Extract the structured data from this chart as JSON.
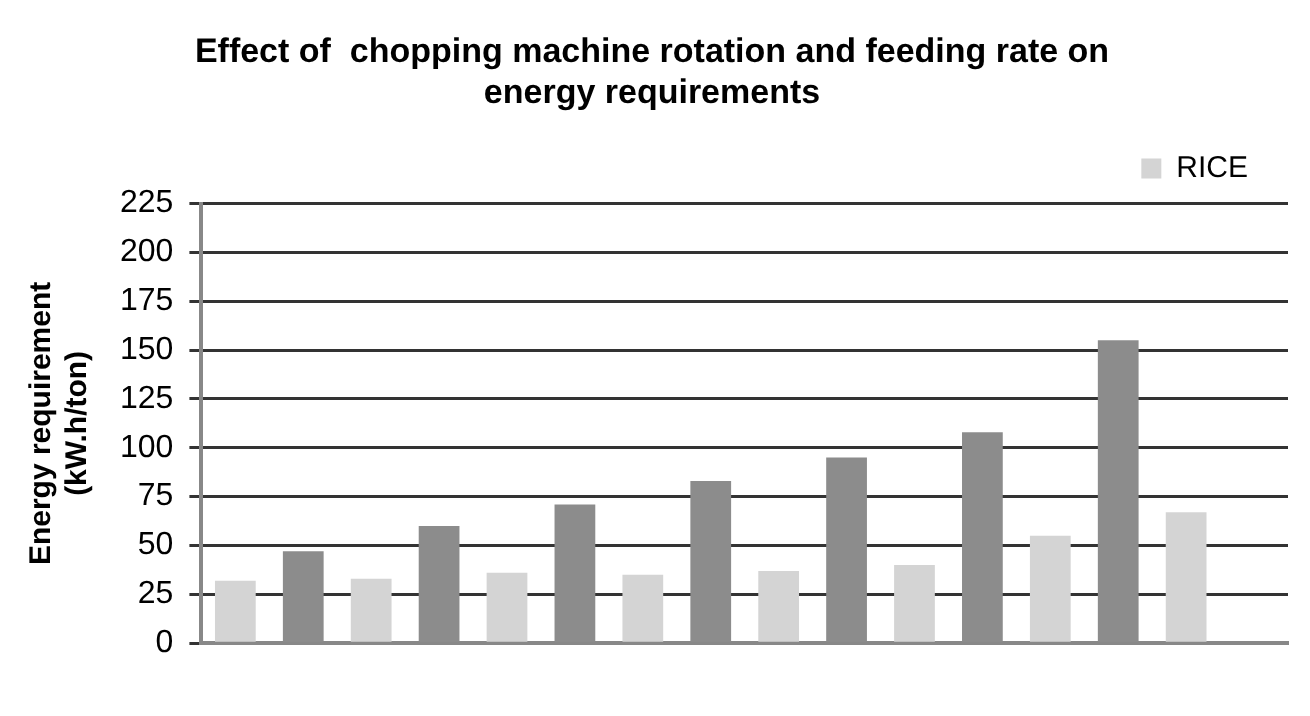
{
  "chart_data": {
    "type": "bar",
    "title": "Effect of  chopping machine rotation and feeding rate on\nenergy requirements",
    "ylabel": "Energy requirement\n(kW.h/ton)",
    "categories": [
      null,
      null,
      null,
      null,
      null,
      null,
      null,
      null
    ],
    "series": [
      {
        "name": "RICE",
        "color": "#d4d4d4",
        "values": [
          32,
          33,
          36,
          35,
          37,
          40,
          55,
          67
        ]
      },
      {
        "color": "#8c8c8c",
        "values": [
          47,
          60,
          71,
          83,
          95,
          108,
          155,
          null
        ]
      }
    ],
    "ylim": [
      0,
      225
    ],
    "yticks": [
      0,
      25,
      50,
      75,
      100,
      125,
      150,
      175,
      200,
      225
    ],
    "grid": "y",
    "legend": "top right"
  }
}
